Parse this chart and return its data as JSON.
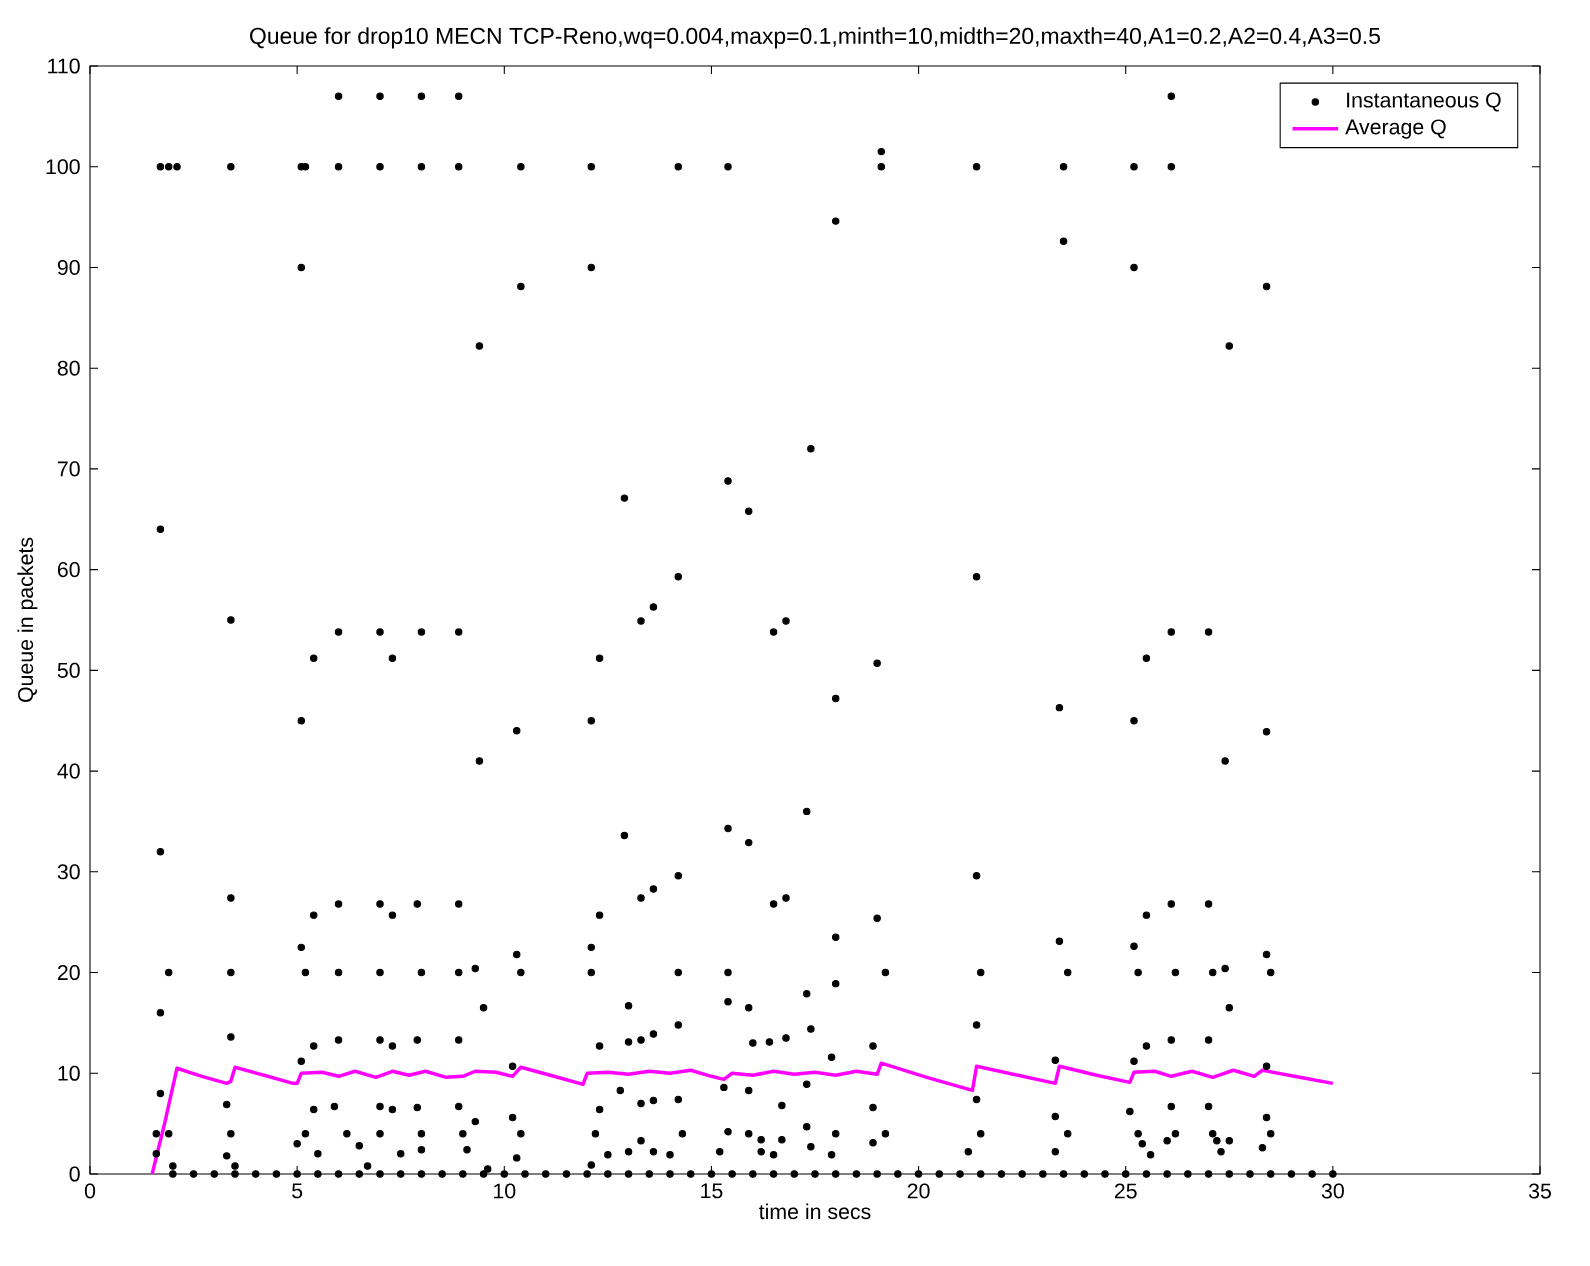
{
  "chart_data": {
    "type": "scatter",
    "title": "Queue for drop10 MECN TCP-Reno,wq=0.004,maxp=0.1,minth=10,midth=20,maxth=40,A1=0.2,A2=0.4,A3=0.5",
    "xlabel": "time in secs",
    "ylabel": "Queue in packets",
    "xlim": [
      0,
      35
    ],
    "xticks": [
      0,
      5,
      10,
      15,
      20,
      25,
      30,
      35
    ],
    "ylim": [
      0,
      110
    ],
    "yticks": [
      0,
      10,
      20,
      30,
      40,
      50,
      60,
      70,
      80,
      90,
      100,
      110
    ],
    "grid": false,
    "legend": "top right",
    "series": [
      {
        "name": "Instantaneous Q",
        "color": "#000000",
        "x": [
          1.7,
          1.9,
          2.1,
          3.4,
          5.1,
          5.2,
          6.0,
          7.0,
          8.0,
          8.9,
          10.4,
          12.1,
          14.2,
          15.4,
          19.1,
          21.4,
          23.5,
          25.2,
          26.1,
          6.0,
          7.0,
          8.0,
          8.9,
          26.1,
          19.1,
          5.1,
          12.1,
          25.2,
          9.4,
          27.5,
          10.4,
          28.4,
          18.0,
          23.5,
          1.7,
          17.4,
          12.9,
          15.4,
          15.9,
          14.2,
          21.4,
          13.6,
          13.3,
          3.4,
          6.0,
          7.0,
          8.0,
          8.9,
          16.5,
          16.8,
          26.1,
          27.0,
          5.4,
          7.3,
          12.3,
          25.5,
          19.0,
          5.1,
          12.1,
          25.2,
          18.0,
          23.4,
          9.4,
          27.4,
          10.3,
          28.4,
          1.7,
          17.3,
          12.9,
          15.4,
          15.9,
          13.6,
          13.3,
          14.2,
          21.4,
          3.4,
          5.4,
          6.0,
          7.0,
          7.9,
          8.9,
          7.3,
          12.3,
          16.5,
          16.8,
          19.0,
          25.5,
          26.1,
          27.0,
          5.1,
          12.1,
          25.2,
          9.3,
          10.3,
          18.0,
          23.4,
          28.4,
          1.9,
          3.4,
          5.2,
          6.0,
          7.0,
          8.0,
          8.9,
          10.4,
          12.1,
          14.2,
          15.4,
          19.2,
          21.5,
          23.6,
          25.3,
          26.2,
          27.1,
          27.4,
          28.5,
          1.7,
          9.5,
          13.0,
          15.4,
          15.9,
          14.2,
          17.3,
          18.0,
          21.4,
          27.5,
          3.4,
          5.4,
          6.0,
          7.0,
          7.9,
          8.9,
          7.3,
          5.1,
          10.2,
          12.3,
          13.3,
          13.6,
          13.0,
          16.4,
          16.0,
          16.8,
          17.4,
          17.9,
          18.9,
          23.3,
          25.5,
          26.1,
          27.0,
          25.2,
          28.4,
          1.7,
          3.3,
          5.4,
          5.9,
          7.0,
          7.3,
          7.9,
          8.9,
          9.3,
          10.2,
          12.3,
          12.8,
          13.3,
          13.6,
          14.2,
          15.3,
          15.9,
          16.7,
          17.3,
          18.9,
          21.4,
          23.3,
          25.1,
          26.1,
          27.0,
          28.4,
          1.6,
          1.9,
          3.4,
          5.2,
          6.2,
          7.0,
          8.0,
          9.0,
          10.4,
          12.2,
          13.3,
          14.3,
          15.4,
          15.9,
          16.2,
          16.7,
          17.3,
          18.0,
          19.2,
          21.5,
          23.6,
          25.3,
          26.2,
          27.1,
          28.5,
          26.0,
          27.2,
          27.5,
          25.4,
          5.0,
          6.5,
          1.6,
          3.3,
          5.5,
          7.5,
          8.0,
          9.1,
          10.3,
          12.5,
          13.0,
          13.6,
          14.0,
          15.2,
          16.2,
          16.5,
          17.4,
          17.9,
          18.9,
          21.2,
          23.3,
          25.6,
          27.3,
          28.3,
          2.0,
          3.5,
          6.7,
          9.6,
          12.1,
          2.0,
          2.5,
          3.0,
          3.5,
          4.0,
          4.5,
          5.0,
          5.5,
          6.0,
          6.5,
          7.0,
          7.5,
          8.0,
          8.5,
          9.0,
          9.5,
          10.0,
          10.5,
          11.0,
          11.5,
          12.0,
          12.5,
          13.0,
          13.5,
          14.0,
          14.5,
          15.0,
          15.5,
          16.0,
          16.5,
          17.0,
          17.5,
          18.0,
          18.5,
          19.0,
          19.5,
          20.0,
          20.5,
          21.0,
          21.5,
          22.0,
          22.5,
          23.0,
          23.5,
          24.0,
          24.5,
          25.0,
          25.5,
          26.0,
          26.5,
          27.0,
          27.5,
          28.0,
          28.5,
          29.0,
          29.5,
          30.0
        ],
        "values": [
          100,
          100,
          100,
          100,
          100,
          100,
          100,
          100,
          100,
          100,
          100,
          100,
          100,
          100,
          100,
          100,
          100,
          100,
          100,
          107,
          107,
          107,
          107,
          107,
          101.5,
          90,
          90,
          90,
          82.2,
          82.2,
          88.1,
          88.1,
          94.6,
          92.6,
          64,
          72,
          67.1,
          68.8,
          65.8,
          59.3,
          59.3,
          56.3,
          54.9,
          55,
          53.8,
          53.8,
          53.8,
          53.8,
          53.8,
          54.9,
          53.8,
          53.8,
          51.2,
          51.2,
          51.2,
          51.2,
          50.7,
          45,
          45,
          45,
          47.2,
          46.3,
          41,
          41,
          44,
          43.9,
          32,
          36,
          33.6,
          34.3,
          32.9,
          28.3,
          27.4,
          29.6,
          29.6,
          27.4,
          25.7,
          26.8,
          26.8,
          26.8,
          26.8,
          25.7,
          25.7,
          26.8,
          27.4,
          25.4,
          25.7,
          26.8,
          26.8,
          22.5,
          22.5,
          22.6,
          20.4,
          21.8,
          23.5,
          23.1,
          21.8,
          20,
          20,
          20,
          20,
          20,
          20,
          20,
          20,
          20,
          20,
          20,
          20,
          20,
          20,
          20,
          20,
          20,
          20.4,
          20,
          16,
          16.5,
          16.7,
          17.1,
          16.5,
          14.8,
          17.9,
          18.9,
          14.8,
          16.5,
          13.6,
          12.7,
          13.3,
          13.3,
          13.3,
          13.3,
          12.7,
          11.2,
          10.7,
          12.7,
          13.3,
          13.9,
          13.1,
          13.1,
          13.0,
          13.5,
          14.4,
          11.6,
          12.7,
          11.3,
          12.7,
          13.3,
          13.3,
          11.2,
          10.7,
          8,
          6.9,
          6.4,
          6.7,
          6.7,
          6.4,
          6.6,
          6.7,
          5.2,
          5.6,
          6.4,
          8.3,
          7.0,
          7.3,
          7.4,
          8.6,
          8.3,
          6.8,
          8.9,
          6.6,
          7.4,
          5.7,
          6.2,
          6.7,
          6.7,
          5.6,
          4,
          4,
          4,
          4,
          4,
          4,
          4,
          4,
          4,
          4,
          3.3,
          4,
          4.2,
          4,
          3.4,
          3.4,
          4.7,
          4,
          4,
          4,
          4,
          4,
          4,
          4,
          4,
          3.3,
          3.3,
          3.3,
          3,
          3,
          2.8,
          2,
          1.8,
          2,
          2,
          2.4,
          2.4,
          1.6,
          1.9,
          2.2,
          2.2,
          1.9,
          2.2,
          2.2,
          1.9,
          2.7,
          1.9,
          3.1,
          2.2,
          2.2,
          1.9,
          2.2,
          2.6,
          0.8,
          0.8,
          0.8,
          0.5,
          0.9,
          0,
          0,
          0,
          0,
          0,
          0,
          0,
          0,
          0,
          0,
          0,
          0,
          0,
          0,
          0,
          0,
          0,
          0,
          0,
          0,
          0,
          0,
          0,
          0,
          0,
          0,
          0,
          0,
          0,
          0,
          0,
          0,
          0,
          0,
          0,
          0,
          0,
          0,
          0,
          0,
          0,
          0,
          0,
          0,
          0,
          0,
          0,
          0,
          0,
          0,
          0,
          0,
          0,
          0,
          0,
          0,
          0
        ]
      },
      {
        "name": "Average Q",
        "type": "line",
        "line_style": "solid",
        "color": "#ff00ff",
        "x": [
          1.5,
          1.8,
          2.1,
          2.7,
          3.3,
          3.4,
          3.5,
          4.2,
          4.9,
          5.0,
          5.1,
          5.6,
          6.0,
          6.4,
          6.9,
          7.3,
          7.7,
          8.1,
          8.6,
          9.0,
          9.3,
          9.8,
          10.2,
          10.4,
          11.2,
          11.9,
          12.0,
          12.5,
          13.0,
          13.5,
          14.0,
          14.5,
          15.0,
          15.3,
          15.5,
          16.0,
          16.5,
          17.0,
          17.5,
          18.0,
          18.5,
          19.0,
          19.1,
          20.2,
          21.3,
          21.4,
          22.4,
          23.3,
          23.4,
          24.3,
          25.1,
          25.2,
          25.7,
          26.1,
          26.6,
          27.1,
          27.6,
          28.1,
          28.3,
          29.2,
          30.0
        ],
        "values": [
          0,
          5,
          10.5,
          9.7,
          9.0,
          9.2,
          10.6,
          9.8,
          9.0,
          9.0,
          10.0,
          10.1,
          9.7,
          10.2,
          9.6,
          10.2,
          9.8,
          10.2,
          9.6,
          9.7,
          10.2,
          10.1,
          9.7,
          10.6,
          9.7,
          8.9,
          10.0,
          10.1,
          9.9,
          10.2,
          10.0,
          10.3,
          9.7,
          9.4,
          10.0,
          9.8,
          10.2,
          9.9,
          10.1,
          9.8,
          10.2,
          9.9,
          11.0,
          9.6,
          8.3,
          10.7,
          9.8,
          9.0,
          10.7,
          9.8,
          9.1,
          10.1,
          10.2,
          9.7,
          10.2,
          9.6,
          10.3,
          9.7,
          10.3,
          9.6,
          9.0
        ]
      }
    ]
  }
}
